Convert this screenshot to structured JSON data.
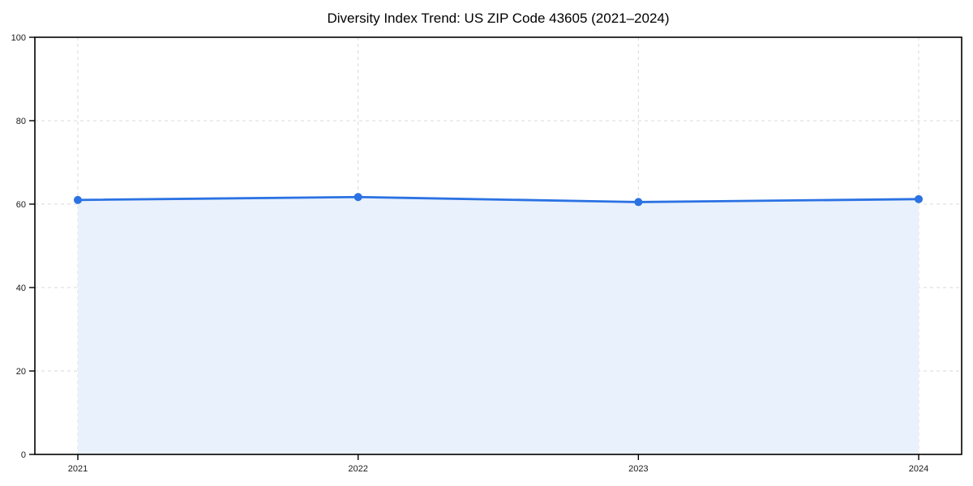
{
  "title": "Diversity Index Trend: US ZIP Code 43605 (2021–2024)",
  "chart_data": {
    "type": "area",
    "title": "Diversity Index Trend: US ZIP Code 43605 (2021–2024)",
    "x": [
      2021,
      2022,
      2023,
      2024
    ],
    "x_labels": [
      "2021",
      "2022",
      "2023",
      "2024"
    ],
    "series": [
      {
        "name": "Diversity Index",
        "values": [
          61.0,
          61.7,
          60.5,
          61.2
        ]
      }
    ],
    "xlabel": "",
    "ylabel": "",
    "ylim": [
      0,
      100
    ],
    "yticks": [
      0,
      20,
      40,
      60,
      80,
      100
    ],
    "ytick_labels": [
      "0",
      "20",
      "40",
      "60",
      "80",
      "100"
    ],
    "grid": true,
    "grid_style": "dashed",
    "legend_position": "none",
    "marker": "circle",
    "colors": {
      "line": "#2b72e3",
      "marker": "#2b72e3",
      "fill": "#e9f1fc",
      "grid": "#d9d9d9",
      "spine": "#000000",
      "tick_text": "#1a1a1a",
      "background": "#ffffff"
    }
  }
}
